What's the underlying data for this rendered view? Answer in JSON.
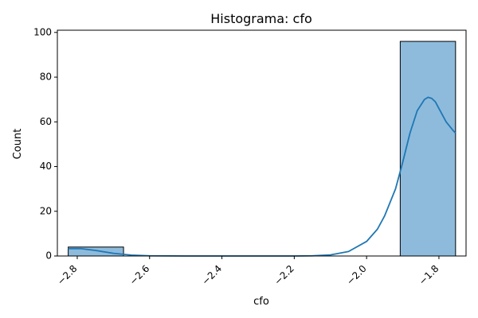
{
  "chart_data": {
    "type": "bar",
    "title": "Histograma: cfo",
    "xlabel": "cfo",
    "ylabel": "Count",
    "xlim": [
      -2.855,
      -1.725
    ],
    "ylim": [
      0,
      101
    ],
    "x_ticks": [
      -2.8,
      -2.6,
      -2.4,
      -2.2,
      -2.0,
      -1.8
    ],
    "x_tick_labels": [
      "−2.8",
      "−2.6",
      "−2.4",
      "−2.2",
      "−2.0",
      "−1.8"
    ],
    "y_ticks": [
      0,
      20,
      40,
      60,
      80,
      100
    ],
    "y_tick_labels": [
      "0",
      "20",
      "40",
      "60",
      "80",
      "100"
    ],
    "bins": [
      {
        "x0": -2.825,
        "x1": -2.672,
        "count": 4
      },
      {
        "x0": -2.672,
        "x1": -2.519,
        "count": 0
      },
      {
        "x0": -2.519,
        "x1": -2.366,
        "count": 0
      },
      {
        "x0": -2.366,
        "x1": -2.213,
        "count": 0
      },
      {
        "x0": -2.213,
        "x1": -2.06,
        "count": 0
      },
      {
        "x0": -2.06,
        "x1": -1.907,
        "count": 0
      },
      {
        "x0": -1.907,
        "x1": -1.754,
        "count": 96
      }
    ],
    "kde": {
      "x": [
        -2.825,
        -2.79,
        -2.75,
        -2.7,
        -2.65,
        -2.6,
        -2.5,
        -2.4,
        -2.3,
        -2.2,
        -2.15,
        -2.1,
        -2.05,
        -2.0,
        -1.97,
        -1.95,
        -1.92,
        -1.9,
        -1.88,
        -1.86,
        -1.84,
        -1.83,
        -1.82,
        -1.81,
        -1.8,
        -1.78,
        -1.76,
        -1.754
      ],
      "y": [
        3.3,
        3.3,
        2.5,
        1.2,
        0.4,
        0.1,
        0,
        0,
        0,
        0,
        0.1,
        0.5,
        2.0,
        6.5,
        12,
        18,
        30,
        42,
        55,
        65,
        70,
        71,
        70.5,
        69,
        66,
        60,
        56,
        55
      ]
    },
    "grid": false,
    "colors": {
      "bar_fill": "#8ebbdc",
      "bar_edge": "#000000",
      "kde_line": "#1f77b4"
    }
  }
}
